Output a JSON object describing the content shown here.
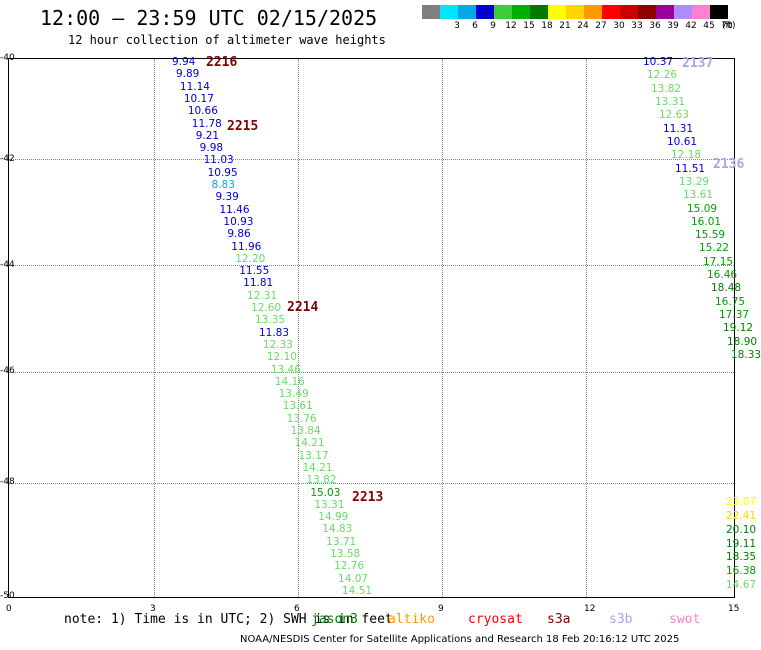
{
  "title": "12:00 – 23:59 UTC 02/15/2025",
  "subtitle": "12 hour collection of altimeter wave heights",
  "legend": {
    "unit": "(ft)",
    "bins": [
      {
        "label": "",
        "color": "#7f7f7f"
      },
      {
        "label": "3",
        "color": "#00e5ff"
      },
      {
        "label": "6",
        "color": "#00a8e8"
      },
      {
        "label": "9",
        "color": "#0000d0"
      },
      {
        "label": "12",
        "color": "#3ccc3c"
      },
      {
        "label": "15",
        "color": "#00b000"
      },
      {
        "label": "18",
        "color": "#007800"
      },
      {
        "label": "21",
        "color": "#ffff00"
      },
      {
        "label": "24",
        "color": "#ffd400"
      },
      {
        "label": "27",
        "color": "#ff9a00"
      },
      {
        "label": "30",
        "color": "#ff0000"
      },
      {
        "label": "33",
        "color": "#cc0000"
      },
      {
        "label": "36",
        "color": "#8b0000"
      },
      {
        "label": "39",
        "color": "#9b009b"
      },
      {
        "label": "42",
        "color": "#b08bff"
      },
      {
        "label": "45",
        "color": "#ff80d0"
      },
      {
        "label": "70",
        "color": "#000000"
      }
    ]
  },
  "axes": {
    "lat_ticks": [
      "-40",
      "-42",
      "-44",
      "-46",
      "-48",
      "-50"
    ],
    "lon_ticks": [
      "0",
      "3",
      "6",
      "9",
      "12",
      "15"
    ]
  },
  "track1": {
    "points": [
      {
        "v": "9.94",
        "c": "#0000d0"
      },
      {
        "v": "9.89",
        "c": "#0000d0"
      },
      {
        "v": "11.14",
        "c": "#0000d0"
      },
      {
        "v": "10.17",
        "c": "#0000d0"
      },
      {
        "v": "10.66",
        "c": "#0000d0"
      },
      {
        "v": "11.78",
        "c": "#0000d0"
      },
      {
        "v": "9.21",
        "c": "#0000d0"
      },
      {
        "v": "9.98",
        "c": "#0000d0"
      },
      {
        "v": "11.03",
        "c": "#0000d0"
      },
      {
        "v": "10.95",
        "c": "#0000d0"
      },
      {
        "v": "8.83",
        "c": "#00a8e8"
      },
      {
        "v": "9.39",
        "c": "#0000d0"
      },
      {
        "v": "11.46",
        "c": "#0000d0"
      },
      {
        "v": "10.93",
        "c": "#0000d0"
      },
      {
        "v": "9.86",
        "c": "#0000d0"
      },
      {
        "v": "11.96",
        "c": "#0000d0"
      },
      {
        "v": "12.20",
        "c": "#66dd66"
      },
      {
        "v": "11.55",
        "c": "#0000d0"
      },
      {
        "v": "11.81",
        "c": "#0000d0"
      },
      {
        "v": "12.31",
        "c": "#66dd66"
      },
      {
        "v": "12.60",
        "c": "#66dd66"
      },
      {
        "v": "13.35",
        "c": "#66dd66"
      },
      {
        "v": "11.83",
        "c": "#0000d0"
      },
      {
        "v": "12.33",
        "c": "#66dd66"
      },
      {
        "v": "12.10",
        "c": "#66dd66"
      },
      {
        "v": "13.46",
        "c": "#66dd66"
      },
      {
        "v": "14.16",
        "c": "#66dd66"
      },
      {
        "v": "13.49",
        "c": "#66dd66"
      },
      {
        "v": "13.61",
        "c": "#66dd66"
      },
      {
        "v": "13.76",
        "c": "#66dd66"
      },
      {
        "v": "13.84",
        "c": "#66dd66"
      },
      {
        "v": "14.21",
        "c": "#66dd66"
      },
      {
        "v": "13.17",
        "c": "#66dd66"
      },
      {
        "v": "14.21",
        "c": "#66dd66"
      },
      {
        "v": "13.82",
        "c": "#66dd66"
      },
      {
        "v": "15.03",
        "c": "#00a000"
      },
      {
        "v": "13.31",
        "c": "#66dd66"
      },
      {
        "v": "14.99",
        "c": "#66dd66"
      },
      {
        "v": "14.83",
        "c": "#66dd66"
      },
      {
        "v": "13.71",
        "c": "#66dd66"
      },
      {
        "v": "13.58",
        "c": "#66dd66"
      },
      {
        "v": "12.76",
        "c": "#66dd66"
      },
      {
        "v": "14.07",
        "c": "#66dd66"
      },
      {
        "v": "14.51",
        "c": "#66dd66"
      }
    ]
  },
  "track2": {
    "points": [
      {
        "v": "10.37",
        "c": "#0000d0"
      },
      {
        "v": "12.26",
        "c": "#66dd66"
      },
      {
        "v": "13.82",
        "c": "#66dd66"
      },
      {
        "v": "13.31",
        "c": "#66dd66"
      },
      {
        "v": "12.63",
        "c": "#66dd66"
      },
      {
        "v": "11.31",
        "c": "#0000d0"
      },
      {
        "v": "10.61",
        "c": "#0000d0"
      },
      {
        "v": "12.18",
        "c": "#66dd66"
      },
      {
        "v": "11.51",
        "c": "#0000d0"
      },
      {
        "v": "13.29",
        "c": "#66dd66"
      },
      {
        "v": "13.61",
        "c": "#66dd66"
      },
      {
        "v": "15.09",
        "c": "#00a000"
      },
      {
        "v": "16.01",
        "c": "#00a000"
      },
      {
        "v": "15.59",
        "c": "#00a000"
      },
      {
        "v": "15.22",
        "c": "#00a000"
      },
      {
        "v": "17.15",
        "c": "#00a000"
      },
      {
        "v": "16.46",
        "c": "#00a000"
      },
      {
        "v": "18.48",
        "c": "#008000"
      },
      {
        "v": "16.75",
        "c": "#00a000"
      },
      {
        "v": "17.37",
        "c": "#00a000"
      },
      {
        "v": "19.12",
        "c": "#008000"
      },
      {
        "v": "18.90",
        "c": "#008000"
      },
      {
        "v": "18.33",
        "c": "#008000"
      }
    ]
  },
  "track3": {
    "points": [
      {
        "v": "23.07",
        "c": "#ffff00"
      },
      {
        "v": "22.41",
        "c": "#ffd400"
      },
      {
        "v": "20.10",
        "c": "#008000"
      },
      {
        "v": "19.11",
        "c": "#008000"
      },
      {
        "v": "18.35",
        "c": "#008000"
      },
      {
        "v": "16.38",
        "c": "#00a000"
      },
      {
        "v": "14.67",
        "c": "#66dd66"
      }
    ]
  },
  "passes": [
    {
      "label": "2216",
      "color": "#800000"
    },
    {
      "label": "2215",
      "color": "#800000"
    },
    {
      "label": "2214",
      "color": "#800000"
    },
    {
      "label": "2213",
      "color": "#800000"
    },
    {
      "label": "2137",
      "color": "#b0a0e8"
    },
    {
      "label": "2136",
      "color": "#b0a0e8"
    }
  ],
  "note": "note: 1) Time is in UTC; 2) SWH is in feet",
  "satellites": [
    {
      "name": "jason3",
      "color": "#008000"
    },
    {
      "name": "altiko",
      "color": "#ff9a00"
    },
    {
      "name": "cryosat",
      "color": "#ff0000"
    },
    {
      "name": "s3a",
      "color": "#800000"
    },
    {
      "name": "s3b",
      "color": "#b0a0e8"
    },
    {
      "name": "swot",
      "color": "#ff80d0"
    }
  ],
  "credit": "NOAA/NESDIS Center for Satellite Applications and Research    18 Feb 20:16:12 UTC 2025"
}
